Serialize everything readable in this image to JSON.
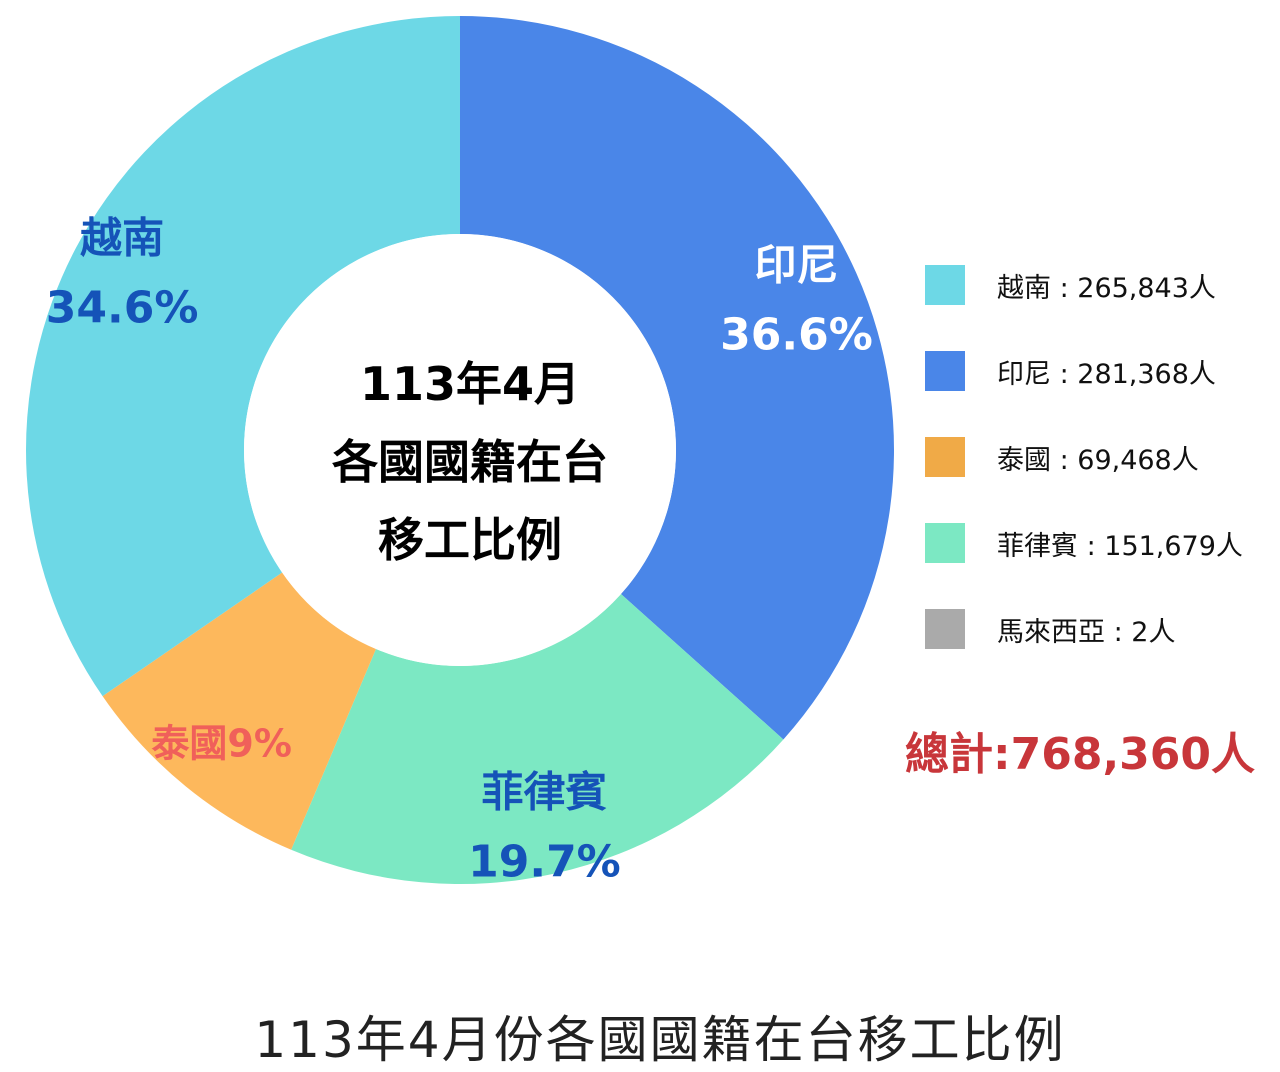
{
  "chart_data": {
    "type": "pie",
    "donut": true,
    "center_title_lines": [
      "113年4月",
      "各國國籍在台",
      "移工比例"
    ],
    "slices": [
      {
        "name": "印尼",
        "value": 281368,
        "percent_label": "36.6%",
        "color": "#4a86e8",
        "label_color": "#ffffff"
      },
      {
        "name": "菲律賓",
        "value": 151679,
        "percent_label": "19.7%",
        "color": "#7ce8c3",
        "label_color": "#1553b8"
      },
      {
        "name": "泰國",
        "value": 69468,
        "percent_label": "9%",
        "color": "#fdb85c",
        "label_color": "#f0605a"
      },
      {
        "name": "越南",
        "value": 265843,
        "percent_label": "34.6%",
        "color": "#6dd8e6",
        "label_color": "#1553b8"
      },
      {
        "name": "馬來西亞",
        "value": 2,
        "percent_label": "",
        "color": "#aaaaaa",
        "label_color": "#000000"
      }
    ],
    "legend": [
      {
        "text": "越南 : 265,843人",
        "color": "#6dd8e6"
      },
      {
        "text": "印尼 : 281,368人",
        "color": "#4a86e8"
      },
      {
        "text": "泰國 : 69,468人",
        "color": "#f0aa47"
      },
      {
        "text": "菲律賓 : 151,679人",
        "color": "#7ce8c3"
      },
      {
        "text": "馬來西亞 : 2人",
        "color": "#aaaaaa"
      }
    ],
    "total_text": "總計:768,360人",
    "caption": "113年4月份各國國籍在台移工比例"
  }
}
